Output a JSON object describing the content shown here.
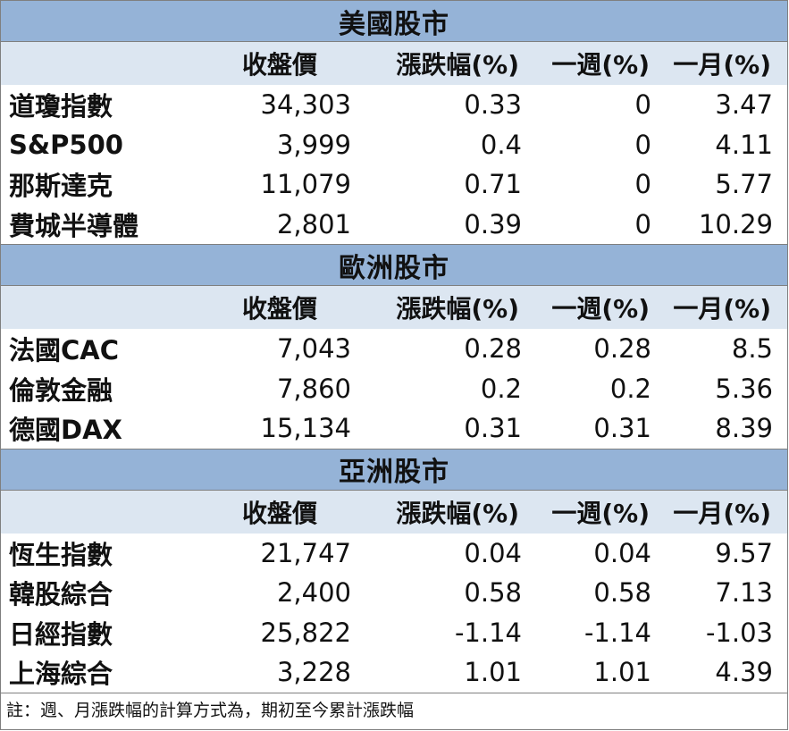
{
  "columns": [
    "",
    "收盤價",
    "漲跌幅(%)",
    "一週(%)",
    "一月(%)"
  ],
  "sections": [
    {
      "title": "美國股市",
      "rows": [
        [
          "道瓊指數",
          "34,303",
          "0.33",
          "0",
          "3.47"
        ],
        [
          "S&P500",
          "3,999",
          "0.4",
          "0",
          "4.11"
        ],
        [
          "那斯達克",
          "11,079",
          "0.71",
          "0",
          "5.77"
        ],
        [
          "費城半導體",
          "2,801",
          "0.39",
          "0",
          "10.29"
        ]
      ]
    },
    {
      "title": "歐洲股市",
      "rows": [
        [
          "法國CAC",
          "7,043",
          "0.28",
          "0.28",
          "8.5"
        ],
        [
          "倫敦金融",
          "7,860",
          "0.2",
          "0.2",
          "5.36"
        ],
        [
          "德國DAX",
          "15,134",
          "0.31",
          "0.31",
          "8.39"
        ]
      ]
    },
    {
      "title": "亞洲股市",
      "rows": [
        [
          "恆生指數",
          "21,747",
          "0.04",
          "0.04",
          "9.57"
        ],
        [
          "韓股綜合",
          "2,400",
          "0.58",
          "0.58",
          "7.13"
        ],
        [
          "日經指數",
          "25,822",
          "-1.14",
          "-1.14",
          "-1.03"
        ],
        [
          "上海綜合",
          "3,228",
          "1.01",
          "1.01",
          "4.39"
        ]
      ]
    }
  ],
  "note": "註：週、月漲跌幅的計算方式為，期初至今累計漲跌幅",
  "colors": {
    "title_band": "#95b3d7",
    "header_band": "#dce6f1",
    "border": "#7f7f7f"
  }
}
